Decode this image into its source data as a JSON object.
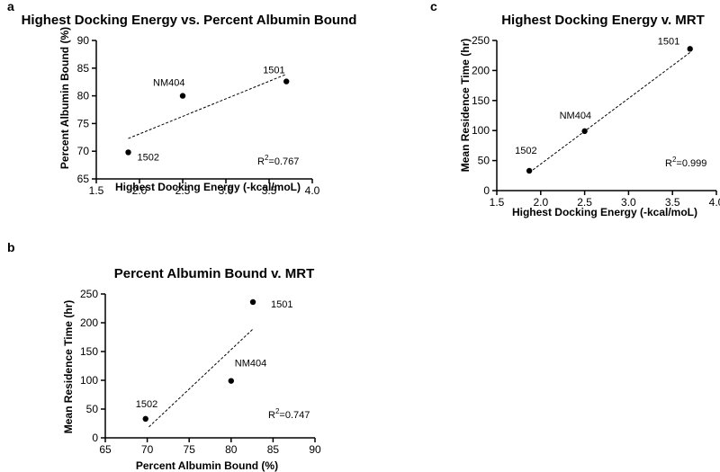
{
  "chart_data": [
    {
      "panel": "a",
      "type": "scatter",
      "title": "Highest Docking Energy vs. Percent Albumin Bound",
      "xlabel": "Highest Docking Energy (-kcal/moL)",
      "ylabel": "Percent Albumin Bound (%)",
      "xlim": [
        1.5,
        4.0
      ],
      "ylim": [
        65,
        90
      ],
      "xticks": [
        "1.5",
        "2.0",
        "2.5",
        "3.0",
        "3.5",
        "4.0"
      ],
      "yticks": [
        "65",
        "70",
        "75",
        "80",
        "85",
        "90"
      ],
      "points": [
        {
          "label": "1502",
          "x": 1.87,
          "y": 69.8
        },
        {
          "label": "NM404",
          "x": 2.5,
          "y": 80.0
        },
        {
          "label": "1501",
          "x": 3.7,
          "y": 82.6
        }
      ],
      "fit": [
        [
          1.87,
          72.3
        ],
        [
          3.7,
          83.9
        ]
      ],
      "r2_text": "0.767"
    },
    {
      "panel": "b",
      "type": "scatter",
      "title": "Percent Albumin Bound v. MRT",
      "xlabel": "Percent Albumin Bound (%)",
      "ylabel": "Mean Residence Time (hr)",
      "xlim": [
        65,
        90
      ],
      "ylim": [
        0,
        250
      ],
      "xticks": [
        "65",
        "70",
        "75",
        "80",
        "85",
        "90"
      ],
      "yticks": [
        "0",
        "50",
        "100",
        "150",
        "200",
        "250"
      ],
      "points": [
        {
          "label": "1502",
          "x": 69.8,
          "y": 33
        },
        {
          "label": "NM404",
          "x": 80.0,
          "y": 99
        },
        {
          "label": "1501",
          "x": 82.6,
          "y": 236
        }
      ],
      "fit": [
        [
          70.2,
          19
        ],
        [
          82.6,
          189
        ]
      ],
      "r2_text": "0.747"
    },
    {
      "panel": "c",
      "type": "scatter",
      "title": "Highest Docking Energy v. MRT",
      "xlabel": "Highest Docking Energy (-kcal/moL)",
      "ylabel": "Mean Residence Time (hr)",
      "xlim": [
        1.5,
        4.0
      ],
      "ylim": [
        0,
        250
      ],
      "xticks": [
        "1.5",
        "2.0",
        "2.5",
        "3.0",
        "3.5",
        "4.0"
      ],
      "yticks": [
        "0",
        "50",
        "100",
        "150",
        "200",
        "250"
      ],
      "points": [
        {
          "label": "1502",
          "x": 1.87,
          "y": 33
        },
        {
          "label": "NM404",
          "x": 2.5,
          "y": 99
        },
        {
          "label": "1501",
          "x": 3.7,
          "y": 236
        }
      ],
      "fit": [
        [
          1.87,
          30
        ],
        [
          3.7,
          230
        ]
      ],
      "r2_text": "0.999"
    }
  ],
  "r2_prefix": "R",
  "r2_sup": "2",
  "r2_eq": "="
}
